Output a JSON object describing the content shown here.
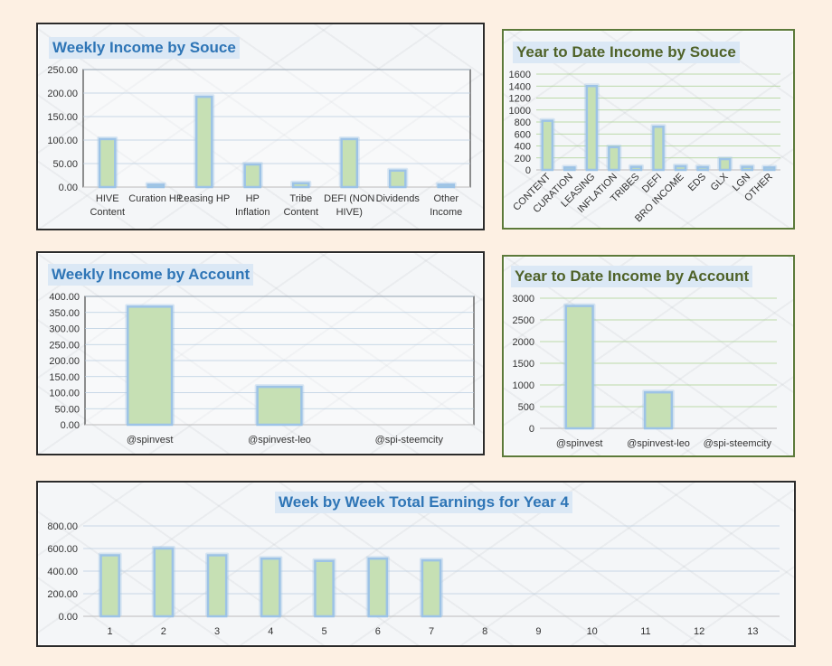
{
  "colors": {
    "background": "#fdf0e3",
    "bar_fill": "#c6e0b4",
    "bar_glow": "#9dc3e6",
    "title_blue": "#2e75b6",
    "title_green": "#4f6228"
  },
  "chart_data": [
    {
      "id": "weekly_source",
      "type": "bar",
      "title": "Weekly Income by Souce",
      "categories": [
        "HIVE Content",
        "Curation HP",
        "Leasing HP",
        "HP Inflation",
        "Tribe Content",
        "DEFI (NON HIVE)",
        "Dividends",
        "Other Income"
      ],
      "values": [
        102,
        5,
        192,
        48,
        8,
        102,
        35,
        5
      ],
      "ylim": [
        0,
        250
      ],
      "yticks": [
        "0.00",
        "50.00",
        "100.00",
        "150.00",
        "200.00",
        "250.00"
      ],
      "grid": true
    },
    {
      "id": "ytd_source",
      "type": "bar",
      "title": "Year to Date Income by Souce",
      "categories": [
        "CONTENT",
        "CURATION",
        "LEASING",
        "INFLATION",
        "TRIBES",
        "DEFI",
        "BRO INCOME",
        "EDS",
        "GLX",
        "LGN",
        "OTHER"
      ],
      "values": [
        820,
        40,
        1400,
        380,
        50,
        720,
        60,
        45,
        180,
        50,
        40
      ],
      "ylim": [
        0,
        1600
      ],
      "yticks": [
        "0",
        "200",
        "400",
        "600",
        "800",
        "1000",
        "1200",
        "1400",
        "1600"
      ],
      "grid": true
    },
    {
      "id": "weekly_account",
      "type": "bar",
      "title": "Weekly Income by Account",
      "categories": [
        "@spinvest",
        "@spinvest-leo",
        "@spi-steemcity"
      ],
      "values": [
        368,
        118,
        0
      ],
      "ylim": [
        0,
        400
      ],
      "yticks": [
        "0.00",
        "50.00",
        "100.00",
        "150.00",
        "200.00",
        "250.00",
        "300.00",
        "350.00",
        "400.00"
      ],
      "grid": true
    },
    {
      "id": "ytd_account",
      "type": "bar",
      "title": "Year to Date Income by Account",
      "categories": [
        "@spinvest",
        "@spinvest-leo",
        "@spi-steemcity"
      ],
      "values": [
        2820,
        830,
        0
      ],
      "ylim": [
        0,
        3000
      ],
      "yticks": [
        "0",
        "500",
        "1000",
        "1500",
        "2000",
        "2500",
        "3000"
      ],
      "grid": true
    },
    {
      "id": "week_by_week",
      "type": "bar",
      "title": "Week by Week Total Earnings for Year 4",
      "categories": [
        "1",
        "2",
        "3",
        "4",
        "5",
        "6",
        "7",
        "8",
        "9",
        "10",
        "11",
        "12",
        "13"
      ],
      "values": [
        540,
        600,
        540,
        510,
        490,
        510,
        495,
        0,
        0,
        0,
        0,
        0,
        0
      ],
      "ylim": [
        0,
        800
      ],
      "yticks": [
        "0.00",
        "200.00",
        "400.00",
        "600.00",
        "800.00"
      ],
      "grid": true
    }
  ]
}
